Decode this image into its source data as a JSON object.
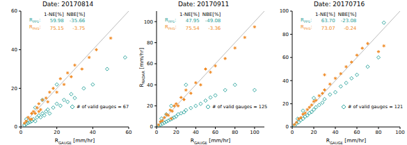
{
  "chart_data": [
    {
      "type": "scatter",
      "title": "Date: 20170814",
      "xlabel": "RGAUGE [mm/hr]",
      "xlim": [
        0,
        60
      ],
      "ylim": [
        0,
        60
      ],
      "xticks": [
        0,
        20,
        40,
        60
      ],
      "yticks": [
        0,
        20,
        40,
        60
      ],
      "stats_header": [
        "1-NE[%]",
        "NBE[%]"
      ],
      "annotation": "# of valid gauges = 67",
      "series": [
        {
          "name": "RPPS",
          "color": "#1f9e96",
          "marker": "diamond",
          "stats": [
            59.98,
            -35.66
          ],
          "points": [
            [
              2,
              1
            ],
            [
              3,
              1.5
            ],
            [
              4,
              2
            ],
            [
              5,
              2.5
            ],
            [
              6,
              3
            ],
            [
              7,
              4
            ],
            [
              8,
              3
            ],
            [
              9,
              5
            ],
            [
              10,
              6
            ],
            [
              11,
              5
            ],
            [
              12,
              7
            ],
            [
              13,
              6
            ],
            [
              14,
              8
            ],
            [
              15,
              9
            ],
            [
              16,
              7
            ],
            [
              18,
              10
            ],
            [
              20,
              12
            ],
            [
              22,
              11
            ],
            [
              24,
              14
            ],
            [
              26,
              13
            ],
            [
              28,
              17
            ],
            [
              30,
              15
            ],
            [
              35,
              20
            ],
            [
              40,
              22
            ],
            [
              48,
              30
            ],
            [
              58,
              36
            ],
            [
              8,
              10
            ],
            [
              12,
              14
            ],
            [
              3,
              4
            ],
            [
              20,
              22
            ]
          ]
        },
        {
          "name": "RPHS",
          "color": "#f08a24",
          "marker": "cross",
          "stats": [
            75.15,
            -3.75
          ],
          "points": [
            [
              2,
              2
            ],
            [
              3,
              3
            ],
            [
              4,
              5
            ],
            [
              5,
              4
            ],
            [
              6,
              7
            ],
            [
              7,
              8
            ],
            [
              8,
              7
            ],
            [
              9,
              10
            ],
            [
              10,
              12
            ],
            [
              11,
              9
            ],
            [
              12,
              14
            ],
            [
              14,
              15
            ],
            [
              15,
              13
            ],
            [
              16,
              18
            ],
            [
              18,
              20
            ],
            [
              20,
              18
            ],
            [
              22,
              25
            ],
            [
              24,
              22
            ],
            [
              26,
              28
            ],
            [
              28,
              26
            ],
            [
              30,
              32
            ],
            [
              34,
              30
            ],
            [
              38,
              36
            ],
            [
              42,
              40
            ],
            [
              50,
              46
            ],
            [
              6,
              4
            ],
            [
              10,
              8
            ]
          ]
        }
      ]
    },
    {
      "type": "scatter",
      "title": "Date: 20170911",
      "xlabel": "RGAUGE [mm/hr]",
      "ylabel": "RRADAR [mm/hr]",
      "xlim": [
        0,
        110
      ],
      "ylim": [
        0,
        110
      ],
      "xticks": [
        0,
        20,
        40,
        60,
        80,
        100
      ],
      "yticks": [
        0,
        20,
        40,
        60,
        80,
        100
      ],
      "stats_header": [
        "1-NE[%]",
        "NBE[%]"
      ],
      "annotation": "# of valid gauges = 125",
      "series": [
        {
          "name": "RPPS",
          "color": "#1f9e96",
          "marker": "diamond",
          "stats": [
            47.95,
            -49.08
          ],
          "points": [
            [
              2,
              1
            ],
            [
              4,
              2
            ],
            [
              6,
              3
            ],
            [
              8,
              4
            ],
            [
              10,
              5
            ],
            [
              12,
              6
            ],
            [
              14,
              7
            ],
            [
              16,
              8
            ],
            [
              18,
              9
            ],
            [
              20,
              10
            ],
            [
              22,
              12
            ],
            [
              25,
              13
            ],
            [
              28,
              14
            ],
            [
              30,
              16
            ],
            [
              35,
              18
            ],
            [
              40,
              20
            ],
            [
              45,
              22
            ],
            [
              50,
              25
            ],
            [
              55,
              28
            ],
            [
              60,
              30
            ],
            [
              70,
              35
            ],
            [
              80,
              40
            ],
            [
              100,
              35
            ],
            [
              10,
              12
            ],
            [
              15,
              20
            ],
            [
              30,
              40
            ],
            [
              5,
              8
            ]
          ]
        },
        {
          "name": "RPHS",
          "color": "#f08a24",
          "marker": "cross",
          "stats": [
            75.54,
            -3.36
          ],
          "points": [
            [
              2,
              2
            ],
            [
              4,
              5
            ],
            [
              6,
              6
            ],
            [
              8,
              9
            ],
            [
              10,
              12
            ],
            [
              12,
              11
            ],
            [
              14,
              16
            ],
            [
              16,
              15
            ],
            [
              18,
              20
            ],
            [
              20,
              22
            ],
            [
              22,
              20
            ],
            [
              25,
              28
            ],
            [
              28,
              26
            ],
            [
              30,
              35
            ],
            [
              35,
              32
            ],
            [
              40,
              42
            ],
            [
              45,
              40
            ],
            [
              50,
              55
            ],
            [
              55,
              52
            ],
            [
              60,
              58
            ],
            [
              70,
              65
            ],
            [
              80,
              75
            ],
            [
              90,
              85
            ],
            [
              100,
              95
            ],
            [
              15,
              8
            ]
          ]
        }
      ]
    },
    {
      "type": "scatter",
      "title": "Date: 20170716",
      "xlabel": "RGAUGE [mm/hr]",
      "xlim": [
        0,
        100
      ],
      "ylim": [
        0,
        100
      ],
      "xticks": [
        0,
        20,
        40,
        60,
        80,
        100
      ],
      "yticks": [
        0,
        20,
        40,
        60,
        80,
        100
      ],
      "stats_header": [
        "1-NE[%]",
        "NBE[%]"
      ],
      "annotation": "# of valid gauges = 121",
      "series": [
        {
          "name": "RPPS",
          "color": "#1f9e96",
          "marker": "diamond",
          "stats": [
            {
              "value": 63.7,
              "label": "63.70"
            },
            -23.08
          ],
          "points": [
            [
              2,
              1
            ],
            [
              4,
              3
            ],
            [
              6,
              4
            ],
            [
              8,
              6
            ],
            [
              10,
              7
            ],
            [
              12,
              9
            ],
            [
              14,
              10
            ],
            [
              16,
              12
            ],
            [
              18,
              13
            ],
            [
              20,
              15
            ],
            [
              22,
              17
            ],
            [
              25,
              19
            ],
            [
              28,
              21
            ],
            [
              30,
              24
            ],
            [
              35,
              28
            ],
            [
              40,
              30
            ],
            [
              45,
              35
            ],
            [
              50,
              38
            ],
            [
              55,
              42
            ],
            [
              60,
              45
            ],
            [
              70,
              52
            ],
            [
              80,
              60
            ],
            [
              85,
              90
            ],
            [
              10,
              14
            ],
            [
              20,
              25
            ],
            [
              5,
              7
            ]
          ]
        },
        {
          "name": "RPHS",
          "color": "#f08a24",
          "marker": "cross",
          "stats": [
            73.07,
            -0.24
          ],
          "points": [
            [
              2,
              2
            ],
            [
              4,
              4
            ],
            [
              6,
              7
            ],
            [
              8,
              8
            ],
            [
              10,
              11
            ],
            [
              12,
              12
            ],
            [
              14,
              15
            ],
            [
              16,
              17
            ],
            [
              18,
              19
            ],
            [
              20,
              22
            ],
            [
              22,
              23
            ],
            [
              25,
              27
            ],
            [
              28,
              29
            ],
            [
              30,
              32
            ],
            [
              35,
              37
            ],
            [
              40,
              42
            ],
            [
              45,
              46
            ],
            [
              50,
              52
            ],
            [
              55,
              56
            ],
            [
              60,
              62
            ],
            [
              65,
              68
            ],
            [
              70,
              72
            ],
            [
              80,
              65
            ],
            [
              85,
              70
            ],
            [
              30,
              45
            ]
          ]
        }
      ]
    }
  ]
}
